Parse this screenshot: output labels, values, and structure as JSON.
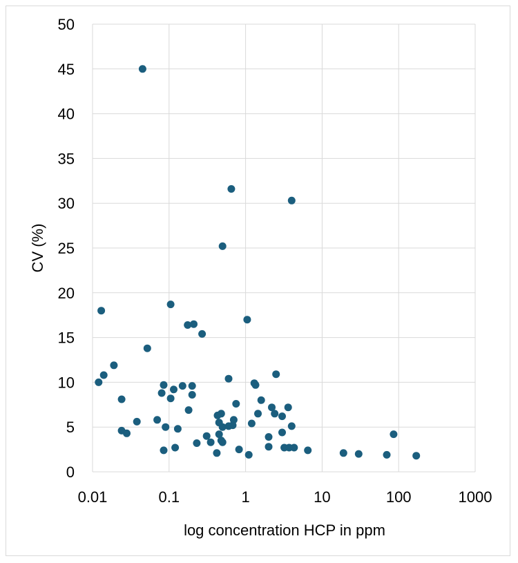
{
  "chart_data": {
    "type": "scatter",
    "title": "",
    "xlabel": "log concentration HCP in ppm",
    "ylabel": "CV (%)",
    "xscale": "log",
    "xlim": [
      0.01,
      1000
    ],
    "ylim": [
      0,
      50
    ],
    "x_ticks": [
      0.01,
      0.1,
      1,
      10,
      100,
      1000
    ],
    "x_tick_labels": [
      "0.01",
      "0.1",
      "1",
      "10",
      "100",
      "1000"
    ],
    "y_ticks": [
      0,
      5,
      10,
      15,
      20,
      25,
      30,
      35,
      40,
      45,
      50
    ],
    "y_tick_labels": [
      "0",
      "5",
      "10",
      "15",
      "20",
      "25",
      "30",
      "35",
      "40",
      "45",
      "50"
    ],
    "grid": true,
    "legend": "none",
    "marker_color": "#1b5e7e",
    "series": [
      {
        "name": "CV",
        "points": [
          [
            0.045,
            45.0
          ],
          [
            0.65,
            31.6
          ],
          [
            4.0,
            30.3
          ],
          [
            0.5,
            25.2
          ],
          [
            0.013,
            18.0
          ],
          [
            0.105,
            18.7
          ],
          [
            1.05,
            17.0
          ],
          [
            0.175,
            16.4
          ],
          [
            0.21,
            16.5
          ],
          [
            0.27,
            15.4
          ],
          [
            0.052,
            13.8
          ],
          [
            0.019,
            11.9
          ],
          [
            0.014,
            10.8
          ],
          [
            0.012,
            10.0
          ],
          [
            2.5,
            10.9
          ],
          [
            0.6,
            10.4
          ],
          [
            1.3,
            9.9
          ],
          [
            1.35,
            9.7
          ],
          [
            0.085,
            9.7
          ],
          [
            0.15,
            9.6
          ],
          [
            0.2,
            9.6
          ],
          [
            0.115,
            9.2
          ],
          [
            0.08,
            8.8
          ],
          [
            0.2,
            8.6
          ],
          [
            0.105,
            8.2
          ],
          [
            0.024,
            8.1
          ],
          [
            1.6,
            8.0
          ],
          [
            0.75,
            7.6
          ],
          [
            2.2,
            7.2
          ],
          [
            3.6,
            7.2
          ],
          [
            0.18,
            6.9
          ],
          [
            1.45,
            6.5
          ],
          [
            2.4,
            6.5
          ],
          [
            0.48,
            6.5
          ],
          [
            0.43,
            6.3
          ],
          [
            3.0,
            6.2
          ],
          [
            0.07,
            5.8
          ],
          [
            0.7,
            5.8
          ],
          [
            0.038,
            5.6
          ],
          [
            0.45,
            5.5
          ],
          [
            1.2,
            5.4
          ],
          [
            0.68,
            5.2
          ],
          [
            0.6,
            5.1
          ],
          [
            4.0,
            5.1
          ],
          [
            0.09,
            5.0
          ],
          [
            0.5,
            5.0
          ],
          [
            0.13,
            4.8
          ],
          [
            0.024,
            4.6
          ],
          [
            0.028,
            4.3
          ],
          [
            3.0,
            4.4
          ],
          [
            0.45,
            4.2
          ],
          [
            0.31,
            4.0
          ],
          [
            2.0,
            3.9
          ],
          [
            0.48,
            3.5
          ],
          [
            0.35,
            3.3
          ],
          [
            0.5,
            3.3
          ],
          [
            0.23,
            3.2
          ],
          [
            2.0,
            2.8
          ],
          [
            3.2,
            2.7
          ],
          [
            3.7,
            2.7
          ],
          [
            4.3,
            2.7
          ],
          [
            0.12,
            2.7
          ],
          [
            0.82,
            2.5
          ],
          [
            0.085,
            2.4
          ],
          [
            6.5,
            2.4
          ],
          [
            0.42,
            2.1
          ],
          [
            1.1,
            1.9
          ],
          [
            19.0,
            2.1
          ],
          [
            30.0,
            2.0
          ],
          [
            70.0,
            1.9
          ],
          [
            86.0,
            4.2
          ],
          [
            170.0,
            1.8
          ]
        ]
      }
    ]
  }
}
